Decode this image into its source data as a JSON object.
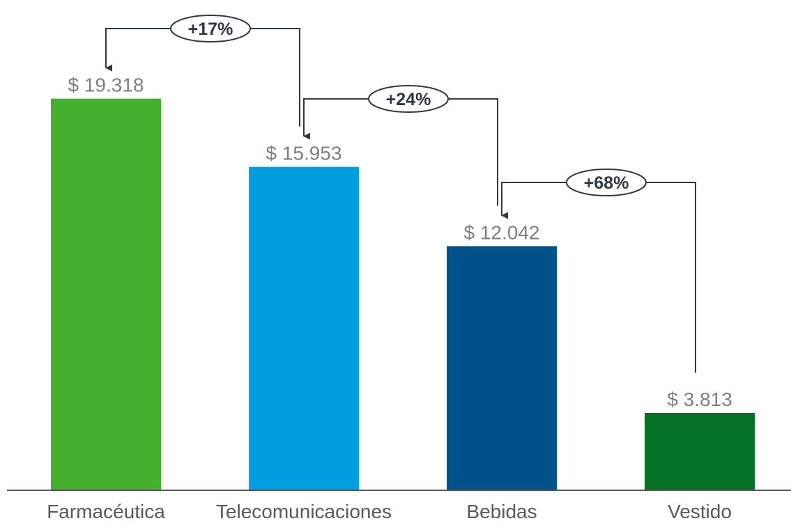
{
  "chart_data": {
    "type": "bar",
    "categories": [
      "Farmacéutica",
      "Telecomunicaciones",
      "Bebidas",
      "Vestido"
    ],
    "values": [
      19318,
      15953,
      12042,
      3813
    ],
    "value_labels": [
      "$ 19.318",
      "$ 15.953",
      "$ 12.042",
      "$ 3.813"
    ],
    "colors": [
      "#45b02e",
      "#009fe0",
      "#00528a",
      "#037224"
    ],
    "ylim": [
      0,
      22500
    ],
    "grid": false,
    "legend": "none",
    "annotations": [
      {
        "from": "Telecomunicaciones",
        "to": "Farmacéutica",
        "label": "+17%"
      },
      {
        "from": "Bebidas",
        "to": "Telecomunicaciones",
        "label": "+24%"
      },
      {
        "from": "Vestido",
        "to": "Bebidas",
        "label": "+68%"
      }
    ]
  }
}
